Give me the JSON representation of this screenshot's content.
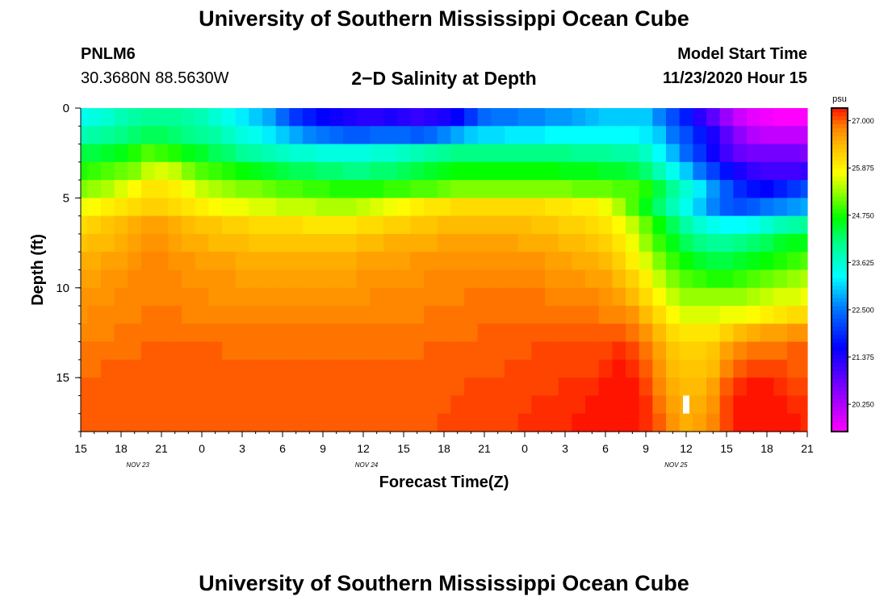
{
  "header": {
    "title": "University of Southern Mississippi Ocean Cube",
    "station_id": "PNLM6",
    "station_coords": "30.3680N 88.5630W",
    "plot_title": "2−D Salinity at Depth",
    "model_start_label": "Model Start Time",
    "model_start_value": "11/23/2020 Hour 15"
  },
  "footer": {
    "title": "University of Southern Mississippi Ocean Cube"
  },
  "chart_data": {
    "type": "heatmap",
    "title": "2−D Salinity at Depth",
    "xlabel": "Forecast Time(Z)",
    "ylabel": "Depth (ft)",
    "x_start_hour": 15,
    "x_end_hour": 69,
    "x_tick_hours": [
      15,
      18,
      21,
      24,
      27,
      30,
      33,
      36,
      39,
      42,
      45,
      48,
      51,
      54,
      57,
      60,
      63,
      66,
      69
    ],
    "x_tick_labels": [
      "15",
      "18",
      "21",
      "0",
      "3",
      "6",
      "9",
      "12",
      "15",
      "18",
      "21",
      "0",
      "3",
      "6",
      "9",
      "12",
      "15",
      "18",
      "21"
    ],
    "date_labels": [
      {
        "hour": 19,
        "label": "NOV  23"
      },
      {
        "hour": 36,
        "label": "NOV  24"
      },
      {
        "hour": 59,
        "label": "NOV  25"
      }
    ],
    "y_range": [
      0,
      18
    ],
    "y_ticks": [
      0,
      5,
      10,
      15
    ],
    "colorbar": {
      "unit": "psu",
      "range": [
        19.6,
        27.3
      ],
      "ticks": [
        "27.000",
        "25.875",
        "24.750",
        "23.625",
        "22.500",
        "21.375",
        "20.250"
      ],
      "tick_values": [
        27.0,
        25.875,
        24.75,
        23.625,
        22.5,
        21.375,
        20.25
      ]
    },
    "columns_hours": [
      15,
      16,
      17,
      18,
      19,
      20,
      21,
      22,
      23,
      24,
      25,
      26,
      27,
      28,
      29,
      30,
      31,
      32,
      33,
      34,
      35,
      36,
      37,
      38,
      39,
      40,
      41,
      42,
      43,
      44,
      45,
      46,
      47,
      48,
      49,
      50,
      51,
      52,
      53,
      54,
      55,
      56,
      57,
      58,
      59,
      60,
      61,
      62,
      63,
      64,
      65,
      66,
      67,
      68,
      69
    ],
    "depth_levels_ft": [
      0.5,
      1.5,
      2.5,
      3.5,
      4.5,
      5.5,
      6.5,
      7.5,
      8.5,
      9.5,
      10.5,
      11.5,
      12.5,
      13.5,
      14.5,
      15.5,
      16.5,
      17.5
    ],
    "salinity_psu": [
      [
        23.4,
        23.5,
        23.6,
        23.8,
        23.9,
        24.0,
        24.0,
        24.0,
        23.9,
        23.8,
        23.6,
        23.4,
        23.2,
        23.0,
        22.8,
        22.4,
        22.0,
        21.8,
        21.6,
        21.5,
        21.4,
        21.3,
        21.3,
        21.4,
        21.3,
        21.2,
        21.3,
        21.4,
        21.6,
        22.0,
        22.4,
        22.5,
        22.5,
        22.6,
        22.6,
        22.7,
        22.7,
        22.8,
        22.9,
        23.0,
        23.0,
        23.0,
        23.0,
        22.6,
        22.2,
        21.8,
        21.3,
        20.9,
        20.4,
        20.0,
        19.8,
        19.7,
        19.6,
        19.6,
        19.6
      ],
      [
        23.8,
        23.9,
        24.0,
        24.1,
        24.2,
        24.3,
        24.3,
        24.2,
        24.1,
        24.0,
        23.9,
        23.7,
        23.5,
        23.4,
        23.2,
        23.0,
        22.8,
        22.6,
        22.5,
        22.4,
        22.3,
        22.3,
        22.4,
        22.4,
        22.4,
        22.3,
        22.4,
        22.6,
        22.8,
        23.0,
        23.1,
        23.1,
        23.2,
        23.2,
        23.2,
        23.3,
        23.3,
        23.3,
        23.3,
        23.3,
        23.3,
        23.3,
        23.2,
        23.0,
        22.5,
        22.2,
        21.8,
        21.4,
        20.9,
        20.5,
        20.2,
        20.1,
        20.1,
        20.1,
        20.1
      ],
      [
        24.4,
        24.4,
        24.5,
        24.6,
        24.8,
        25.0,
        24.9,
        24.8,
        24.6,
        24.5,
        24.3,
        24.2,
        24.0,
        23.9,
        23.8,
        23.7,
        23.6,
        23.6,
        23.5,
        23.5,
        23.5,
        23.5,
        23.6,
        23.6,
        23.7,
        23.8,
        23.9,
        24.0,
        24.1,
        24.1,
        24.1,
        24.1,
        24.1,
        24.1,
        24.1,
        24.1,
        24.1,
        24.0,
        24.0,
        24.0,
        23.9,
        23.9,
        23.7,
        23.3,
        22.9,
        22.4,
        22.0,
        21.5,
        21.1,
        20.8,
        20.7,
        20.7,
        20.7,
        20.7,
        20.6
      ],
      [
        24.8,
        24.9,
        25.0,
        25.1,
        25.2,
        25.5,
        25.6,
        25.5,
        25.2,
        25.0,
        24.9,
        24.8,
        24.7,
        24.6,
        24.5,
        24.4,
        24.3,
        24.3,
        24.2,
        24.2,
        24.1,
        24.1,
        24.2,
        24.2,
        24.3,
        24.4,
        24.5,
        24.6,
        24.7,
        24.7,
        24.7,
        24.7,
        24.7,
        24.7,
        24.7,
        24.7,
        24.6,
        24.6,
        24.6,
        24.5,
        24.5,
        24.4,
        24.2,
        23.8,
        23.4,
        23.0,
        22.5,
        22.1,
        21.7,
        21.4,
        21.2,
        21.1,
        21.1,
        21.1,
        21.2
      ],
      [
        25.2,
        25.3,
        25.4,
        25.6,
        25.8,
        26.0,
        26.0,
        25.9,
        25.7,
        25.5,
        25.4,
        25.3,
        25.2,
        25.2,
        25.1,
        25.0,
        25.0,
        24.9,
        24.9,
        24.8,
        24.8,
        24.8,
        24.8,
        24.9,
        24.9,
        25.0,
        25.0,
        25.1,
        25.2,
        25.2,
        25.2,
        25.2,
        25.2,
        25.2,
        25.2,
        25.2,
        25.2,
        25.1,
        25.1,
        25.1,
        25.0,
        25.0,
        24.8,
        24.4,
        24.0,
        23.6,
        23.2,
        22.7,
        22.3,
        21.9,
        21.7,
        21.6,
        21.8,
        22.0,
        22.2
      ],
      [
        25.7,
        25.8,
        25.9,
        26.0,
        26.1,
        26.2,
        26.2,
        26.1,
        26.0,
        25.9,
        25.8,
        25.7,
        25.7,
        25.6,
        25.6,
        25.5,
        25.5,
        25.5,
        25.4,
        25.4,
        25.4,
        25.5,
        25.6,
        25.7,
        25.8,
        25.9,
        26.0,
        26.0,
        26.1,
        26.1,
        26.1,
        26.1,
        26.1,
        26.1,
        26.1,
        26.0,
        26.0,
        25.9,
        25.9,
        25.7,
        25.4,
        25.0,
        24.6,
        24.2,
        23.8,
        23.4,
        23.0,
        22.6,
        22.3,
        22.2,
        22.3,
        22.5,
        22.6,
        22.7,
        22.8
      ],
      [
        26.1,
        26.2,
        26.3,
        26.4,
        26.5,
        26.6,
        26.6,
        26.5,
        26.4,
        26.3,
        26.3,
        26.2,
        26.2,
        26.1,
        26.1,
        26.1,
        26.1,
        26.0,
        26.0,
        26.0,
        26.0,
        26.1,
        26.1,
        26.2,
        26.2,
        26.3,
        26.3,
        26.4,
        26.4,
        26.4,
        26.4,
        26.4,
        26.4,
        26.4,
        26.3,
        26.3,
        26.2,
        26.2,
        26.1,
        26.0,
        25.8,
        25.5,
        25.1,
        24.7,
        24.3,
        23.9,
        23.6,
        23.4,
        23.3,
        23.3,
        23.4,
        23.6,
        23.8,
        23.9,
        24.0
      ],
      [
        26.3,
        26.4,
        26.4,
        26.5,
        26.6,
        26.7,
        26.7,
        26.6,
        26.5,
        26.5,
        26.4,
        26.4,
        26.4,
        26.3,
        26.3,
        26.3,
        26.3,
        26.3,
        26.3,
        26.3,
        26.3,
        26.4,
        26.4,
        26.5,
        26.5,
        26.5,
        26.5,
        26.6,
        26.6,
        26.6,
        26.6,
        26.6,
        26.6,
        26.5,
        26.5,
        26.5,
        26.4,
        26.4,
        26.3,
        26.2,
        26.0,
        25.7,
        25.3,
        24.9,
        24.6,
        24.3,
        24.1,
        24.0,
        24.0,
        24.1,
        24.2,
        24.3,
        24.5,
        24.6,
        24.6
      ],
      [
        26.5,
        26.5,
        26.6,
        26.6,
        26.7,
        26.8,
        26.8,
        26.7,
        26.7,
        26.6,
        26.6,
        26.6,
        26.5,
        26.5,
        26.5,
        26.5,
        26.5,
        26.5,
        26.5,
        26.5,
        26.5,
        26.6,
        26.6,
        26.6,
        26.6,
        26.7,
        26.7,
        26.7,
        26.7,
        26.7,
        26.7,
        26.7,
        26.7,
        26.7,
        26.7,
        26.6,
        26.6,
        26.5,
        26.5,
        26.4,
        26.2,
        25.9,
        25.6,
        25.2,
        24.9,
        24.7,
        24.5,
        24.4,
        24.4,
        24.5,
        24.6,
        24.7,
        24.8,
        24.9,
        25.0
      ],
      [
        26.6,
        26.6,
        26.7,
        26.7,
        26.8,
        26.8,
        26.8,
        26.8,
        26.7,
        26.7,
        26.7,
        26.7,
        26.6,
        26.6,
        26.6,
        26.6,
        26.6,
        26.6,
        26.6,
        26.6,
        26.6,
        26.7,
        26.7,
        26.7,
        26.7,
        26.7,
        26.8,
        26.8,
        26.8,
        26.8,
        26.8,
        26.8,
        26.8,
        26.8,
        26.8,
        26.7,
        26.7,
        26.7,
        26.6,
        26.6,
        26.4,
        26.2,
        25.9,
        25.5,
        25.2,
        25.0,
        24.9,
        24.8,
        24.8,
        24.9,
        25.0,
        25.1,
        25.2,
        25.3,
        25.4
      ],
      [
        26.7,
        26.7,
        26.7,
        26.8,
        26.8,
        26.8,
        26.8,
        26.8,
        26.8,
        26.8,
        26.7,
        26.7,
        26.7,
        26.7,
        26.7,
        26.7,
        26.7,
        26.7,
        26.7,
        26.7,
        26.7,
        26.7,
        26.8,
        26.8,
        26.8,
        26.8,
        26.8,
        26.8,
        26.8,
        26.9,
        26.9,
        26.9,
        26.9,
        26.9,
        26.9,
        26.8,
        26.8,
        26.8,
        26.8,
        26.7,
        26.6,
        26.4,
        26.1,
        25.8,
        25.5,
        25.3,
        25.3,
        25.3,
        25.3,
        25.3,
        25.4,
        25.5,
        25.6,
        25.6,
        25.7
      ],
      [
        26.7,
        26.8,
        26.8,
        26.8,
        26.8,
        26.9,
        26.9,
        26.9,
        26.8,
        26.8,
        26.8,
        26.8,
        26.8,
        26.8,
        26.8,
        26.8,
        26.8,
        26.8,
        26.8,
        26.8,
        26.8,
        26.8,
        26.8,
        26.8,
        26.8,
        26.8,
        26.9,
        26.9,
        26.9,
        26.9,
        26.9,
        26.9,
        26.9,
        26.9,
        26.9,
        26.9,
        26.9,
        26.9,
        26.9,
        26.8,
        26.8,
        26.7,
        26.4,
        26.1,
        25.8,
        25.6,
        25.6,
        25.6,
        25.7,
        25.7,
        25.8,
        25.9,
        26.0,
        26.1,
        26.1
      ],
      [
        26.8,
        26.8,
        26.8,
        26.9,
        26.9,
        26.9,
        26.9,
        26.9,
        26.9,
        26.9,
        26.9,
        26.9,
        26.9,
        26.9,
        26.9,
        26.9,
        26.9,
        26.9,
        26.9,
        26.9,
        26.9,
        26.9,
        26.9,
        26.9,
        26.9,
        26.9,
        26.9,
        26.9,
        26.9,
        26.9,
        27.0,
        27.0,
        27.0,
        27.0,
        27.0,
        27.0,
        27.0,
        27.0,
        27.0,
        27.0,
        27.0,
        26.9,
        26.7,
        26.4,
        26.1,
        26.0,
        26.0,
        26.0,
        26.2,
        26.4,
        26.5,
        26.6,
        26.6,
        26.7,
        26.7
      ],
      [
        26.9,
        26.9,
        26.9,
        26.9,
        26.9,
        27.0,
        27.0,
        27.0,
        27.0,
        27.0,
        27.0,
        26.9,
        26.9,
        26.9,
        26.9,
        26.9,
        26.9,
        26.9,
        26.9,
        26.9,
        26.9,
        26.9,
        26.9,
        26.9,
        26.9,
        26.9,
        27.0,
        27.0,
        27.0,
        27.0,
        27.0,
        27.0,
        27.0,
        27.0,
        27.1,
        27.1,
        27.1,
        27.1,
        27.1,
        27.1,
        27.2,
        27.1,
        26.9,
        26.6,
        26.3,
        26.2,
        26.2,
        26.3,
        26.6,
        26.8,
        26.9,
        26.9,
        26.9,
        27.0,
        27.0
      ],
      [
        26.9,
        26.9,
        27.0,
        27.0,
        27.0,
        27.0,
        27.0,
        27.0,
        27.0,
        27.0,
        27.0,
        27.0,
        27.0,
        27.0,
        27.0,
        27.0,
        27.0,
        27.0,
        27.0,
        27.0,
        27.0,
        27.0,
        27.0,
        27.0,
        27.0,
        27.0,
        27.0,
        27.0,
        27.0,
        27.0,
        27.0,
        27.0,
        27.1,
        27.1,
        27.1,
        27.1,
        27.1,
        27.1,
        27.1,
        27.2,
        27.3,
        27.2,
        27.0,
        26.7,
        26.4,
        26.3,
        26.3,
        26.4,
        26.8,
        27.0,
        27.1,
        27.1,
        27.1,
        27.0,
        27.0
      ],
      [
        27.0,
        27.0,
        27.0,
        27.0,
        27.0,
        27.0,
        27.0,
        27.0,
        27.0,
        27.0,
        27.0,
        27.0,
        27.0,
        27.0,
        27.0,
        27.0,
        27.0,
        27.0,
        27.0,
        27.0,
        27.0,
        27.0,
        27.0,
        27.0,
        27.0,
        27.0,
        27.0,
        27.0,
        27.0,
        27.1,
        27.1,
        27.1,
        27.1,
        27.1,
        27.1,
        27.1,
        27.2,
        27.2,
        27.2,
        27.3,
        27.3,
        27.3,
        27.1,
        26.8,
        26.5,
        26.4,
        26.4,
        26.6,
        27.0,
        27.2,
        27.3,
        27.3,
        27.2,
        27.1,
        27.1
      ],
      [
        27.0,
        27.0,
        27.0,
        27.0,
        27.0,
        27.0,
        27.0,
        27.0,
        27.0,
        27.0,
        27.0,
        27.0,
        27.0,
        27.0,
        27.0,
        27.0,
        27.0,
        27.0,
        27.0,
        27.0,
        27.0,
        27.0,
        27.0,
        27.0,
        27.0,
        27.0,
        27.0,
        27.0,
        27.1,
        27.1,
        27.1,
        27.1,
        27.1,
        27.1,
        27.2,
        27.2,
        27.2,
        27.2,
        27.3,
        27.3,
        27.3,
        27.3,
        27.2,
        26.9,
        26.6,
        26.5,
        26.5,
        26.7,
        27.1,
        27.3,
        27.3,
        27.3,
        27.3,
        27.2,
        27.2
      ],
      [
        27.0,
        27.0,
        27.0,
        27.0,
        27.0,
        27.0,
        27.0,
        27.0,
        27.0,
        27.0,
        27.0,
        27.0,
        27.0,
        27.0,
        27.0,
        27.0,
        27.0,
        27.0,
        27.0,
        27.0,
        27.0,
        27.0,
        27.0,
        27.0,
        27.0,
        27.0,
        27.0,
        27.1,
        27.1,
        27.1,
        27.1,
        27.1,
        27.1,
        27.2,
        27.2,
        27.2,
        27.2,
        27.3,
        27.3,
        27.3,
        27.3,
        27.3,
        27.2,
        27.0,
        26.7,
        26.5,
        26.6,
        26.8,
        27.1,
        27.3,
        27.3,
        27.3,
        27.3,
        27.3,
        27.2
      ]
    ],
    "marker": {
      "type": "white-bar",
      "hour": 60,
      "depth_from": 16.0,
      "depth_to": 17.0
    }
  }
}
